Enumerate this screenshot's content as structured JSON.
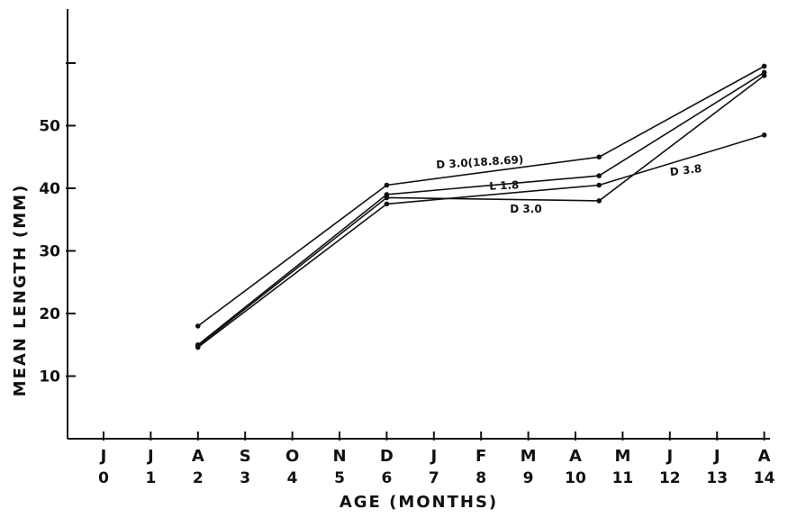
{
  "chart_data": {
    "type": "line",
    "xlabel": "AGE (MONTHS)",
    "ylabel": "MEAN LENGTH (MM)",
    "xlim": [
      0,
      14
    ],
    "ylim": [
      0,
      65
    ],
    "x_ticks": [
      0,
      1,
      2,
      3,
      4,
      5,
      6,
      7,
      8,
      9,
      10,
      11,
      12,
      13,
      14
    ],
    "month_labels": [
      "J",
      "J",
      "A",
      "S",
      "O",
      "N",
      "D",
      "J",
      "F",
      "M",
      "A",
      "M",
      "J",
      "J",
      "A"
    ],
    "y_ticks": [
      10,
      20,
      30,
      40,
      50,
      60
    ],
    "y_tick_labels": [
      "10",
      "20",
      "30",
      "40",
      "50",
      ""
    ],
    "grid": false,
    "series": [
      {
        "name": "D 3.0 (18.8.69)",
        "label_text": "D 3.0(18.8.69)",
        "points": [
          [
            2,
            18.0
          ],
          [
            6,
            40.5
          ],
          [
            10.5,
            45.0
          ],
          [
            14,
            59.5
          ]
        ]
      },
      {
        "name": "L 1.8",
        "label_text": "L 1.8",
        "points": [
          [
            2,
            15.0
          ],
          [
            6,
            39.0
          ],
          [
            10.5,
            42.0
          ],
          [
            14,
            58.5
          ]
        ]
      },
      {
        "name": "D 3.0",
        "label_text": "D 3.0",
        "points": [
          [
            2,
            14.8
          ],
          [
            6,
            38.5
          ],
          [
            10.5,
            38.0
          ],
          [
            14,
            58.0
          ]
        ]
      },
      {
        "name": "D 3.8",
        "label_text": "D 3.8",
        "points": [
          [
            2,
            14.6
          ],
          [
            6,
            37.5
          ],
          [
            10.5,
            40.5
          ],
          [
            14,
            48.5
          ]
        ]
      }
    ]
  }
}
